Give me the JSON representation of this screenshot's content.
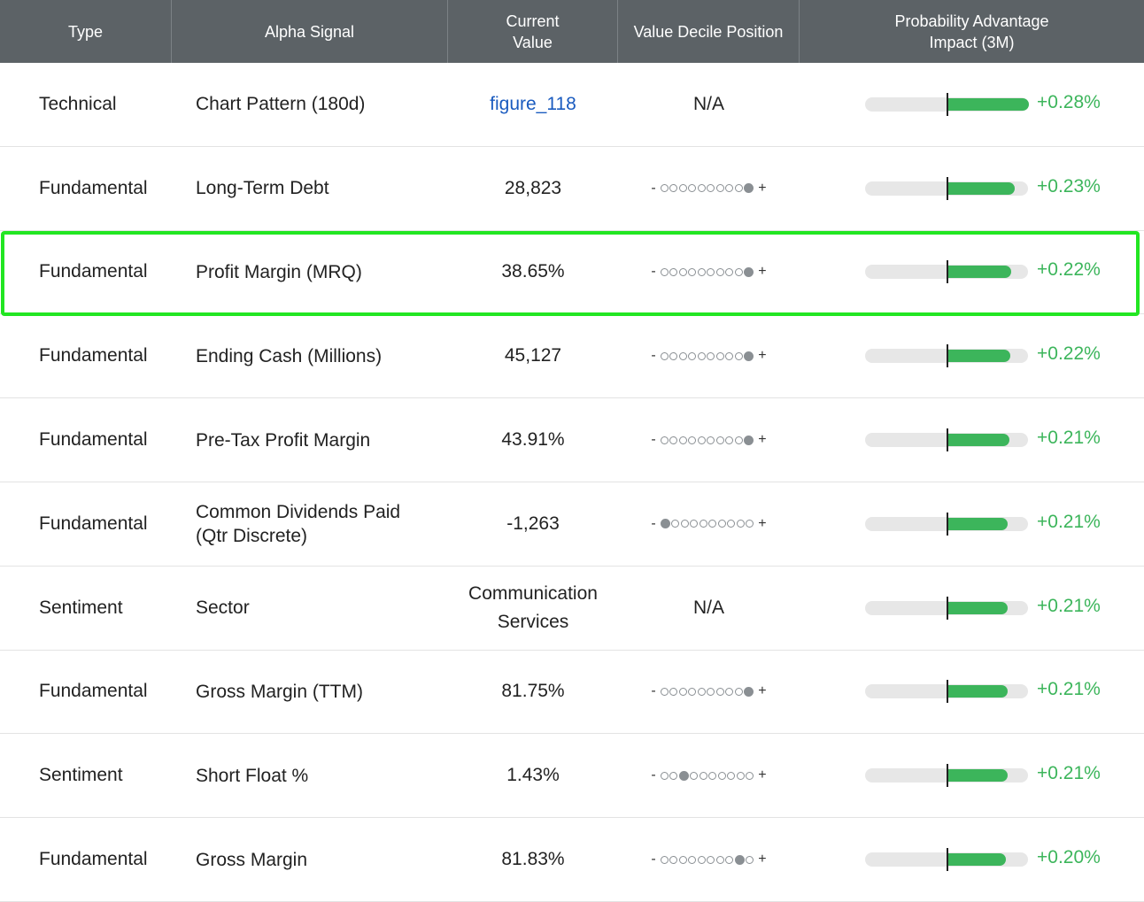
{
  "header": {
    "type": "Type",
    "signal": "Alpha Signal",
    "current_value": "Current\nValue",
    "decile": "Value Decile Position",
    "impact": "Probability Advantage\nImpact (3M)"
  },
  "decile_minus": "-",
  "decile_plus": "+",
  "colors": {
    "header_bg": "#5c6266",
    "positive": "#3cb55b",
    "link": "#1a5bbf",
    "highlight": "#22e622"
  },
  "rows": [
    {
      "type": "Technical",
      "signal": "Chart Pattern (180d)",
      "value": "figure_118",
      "value_is_link": true,
      "decile": null,
      "decile_text": "N/A",
      "impact": "+0.28%",
      "impact_value": 0.28
    },
    {
      "type": "Fundamental",
      "signal": "Long-Term Debt",
      "value": "28,823",
      "decile": 10,
      "impact": "+0.23%",
      "impact_value": 0.23
    },
    {
      "type": "Fundamental",
      "signal": "Profit Margin (MRQ)",
      "value": "38.65%",
      "decile": 10,
      "impact": "+0.22%",
      "impact_value": 0.22,
      "highlighted": true
    },
    {
      "type": "Fundamental",
      "signal": "Ending Cash (Millions)",
      "value": "45,127",
      "decile": 10,
      "impact": "+0.22%",
      "impact_value": 0.215
    },
    {
      "type": "Fundamental",
      "signal": "Pre-Tax Profit Margin",
      "value": "43.91%",
      "decile": 10,
      "impact": "+0.21%",
      "impact_value": 0.212
    },
    {
      "type": "Fundamental",
      "signal": "Common Dividends Paid (Qtr Discrete)",
      "value": "-1,263",
      "decile": 1,
      "impact": "+0.21%",
      "impact_value": 0.208
    },
    {
      "type": "Sentiment",
      "signal": "Sector",
      "value": "Communication Services",
      "decile": null,
      "decile_text": "N/A",
      "impact": "+0.21%",
      "impact_value": 0.208
    },
    {
      "type": "Fundamental",
      "signal": "Gross Margin (TTM)",
      "value": "81.75%",
      "decile": 10,
      "impact": "+0.21%",
      "impact_value": 0.208
    },
    {
      "type": "Sentiment",
      "signal": "Short Float %",
      "value": "1.43%",
      "decile": 3,
      "impact": "+0.21%",
      "impact_value": 0.208
    },
    {
      "type": "Fundamental",
      "signal": "Gross Margin",
      "value": "81.83%",
      "decile": 9,
      "impact": "+0.20%",
      "impact_value": 0.2
    }
  ]
}
